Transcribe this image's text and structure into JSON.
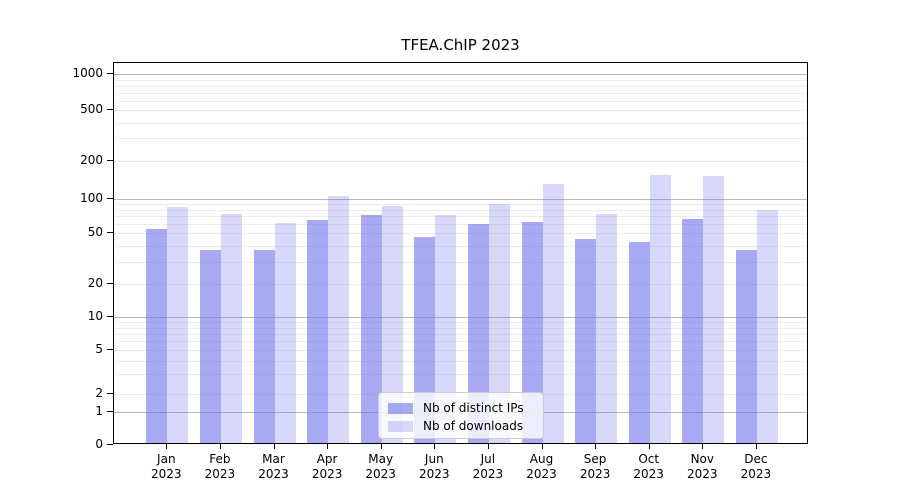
{
  "chart_data": {
    "type": "bar",
    "title": "TFEA.ChIP 2023",
    "categories": [
      "Jan",
      "Feb",
      "Mar",
      "Apr",
      "May",
      "Jun",
      "Jul",
      "Aug",
      "Sep",
      "Oct",
      "Nov",
      "Dec"
    ],
    "category_sublabel": "2023",
    "series": [
      {
        "name": "Nb of distinct IPs",
        "color": "#6C70EB",
        "opacity": 0.6,
        "values": [
          55,
          37,
          37,
          65,
          72,
          47,
          60,
          63,
          45,
          43,
          66,
          37
        ]
      },
      {
        "name": "Nb of downloads",
        "color": "#6C70EB",
        "opacity": 0.27,
        "values": [
          84,
          74,
          62,
          105,
          86,
          72,
          89,
          130,
          74,
          154,
          150,
          79
        ]
      }
    ],
    "yticks": [
      0,
      1,
      2,
      5,
      10,
      20,
      50,
      100,
      200,
      500,
      1000
    ],
    "yscale": "log",
    "ylim": [
      0,
      1000
    ],
    "xlabel": "",
    "ylabel": "",
    "grid": true,
    "legend_position": "lower center"
  }
}
